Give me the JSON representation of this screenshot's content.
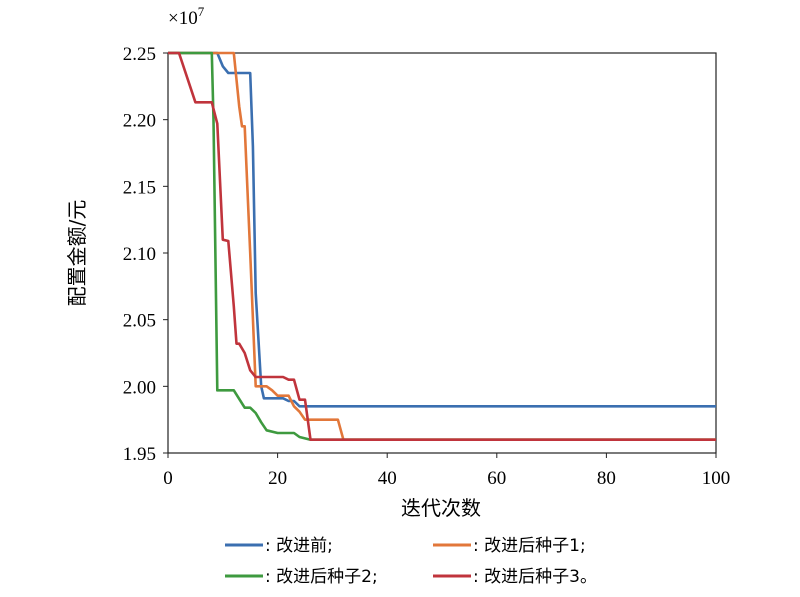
{
  "chart_data": {
    "type": "line",
    "title": "",
    "xlabel": "迭代次数",
    "ylabel": "配置金额/元",
    "y_multiplier_label": "×10",
    "y_multiplier_exp": "7",
    "xlim": [
      0,
      100
    ],
    "ylim": [
      1.95,
      2.25
    ],
    "x_ticks": [
      "0",
      "20",
      "40",
      "60",
      "80",
      "100"
    ],
    "y_ticks": [
      "1.95",
      "2.00",
      "2.05",
      "2.10",
      "2.15",
      "2.20",
      "2.25"
    ],
    "grid": false,
    "legend_position": "bottom",
    "series": [
      {
        "name": ": 改进前;",
        "color": "#3b6fb0",
        "points": [
          [
            0,
            2.25
          ],
          [
            9,
            2.25
          ],
          [
            10,
            2.24
          ],
          [
            11,
            2.235
          ],
          [
            15,
            2.235
          ],
          [
            15.5,
            2.18
          ],
          [
            16,
            2.07
          ],
          [
            17,
            2.0
          ],
          [
            17.5,
            1.991
          ],
          [
            21,
            1.991
          ],
          [
            22,
            1.989
          ],
          [
            23,
            1.989
          ],
          [
            24,
            1.985
          ],
          [
            100,
            1.985
          ]
        ]
      },
      {
        "name": ": 改进后种子1;",
        "color": "#e2773a",
        "points": [
          [
            0,
            2.25
          ],
          [
            12,
            2.25
          ],
          [
            13,
            2.21
          ],
          [
            13.5,
            2.195
          ],
          [
            14,
            2.195
          ],
          [
            15,
            2.1
          ],
          [
            16,
            2.0
          ],
          [
            18,
            2.0
          ],
          [
            19,
            1.997
          ],
          [
            20,
            1.993
          ],
          [
            22,
            1.993
          ],
          [
            23,
            1.985
          ],
          [
            24,
            1.981
          ],
          [
            25,
            1.975
          ],
          [
            31,
            1.975
          ],
          [
            32,
            1.96
          ],
          [
            100,
            1.96
          ]
        ]
      },
      {
        "name": ": 改进后种子2;",
        "color": "#3e9a3f",
        "points": [
          [
            0,
            2.25
          ],
          [
            8,
            2.25
          ],
          [
            8.3,
            2.2
          ],
          [
            9,
            1.997
          ],
          [
            12,
            1.997
          ],
          [
            14,
            1.984
          ],
          [
            15,
            1.984
          ],
          [
            16,
            1.98
          ],
          [
            17,
            1.973
          ],
          [
            18,
            1.967
          ],
          [
            20,
            1.965
          ],
          [
            23,
            1.965
          ],
          [
            24,
            1.962
          ],
          [
            26,
            1.96
          ],
          [
            100,
            1.96
          ]
        ]
      },
      {
        "name": ": 改进后种子3。",
        "color": "#c0343c",
        "points": [
          [
            0,
            2.25
          ],
          [
            2,
            2.25
          ],
          [
            5,
            2.213
          ],
          [
            8,
            2.213
          ],
          [
            9,
            2.197
          ],
          [
            10,
            2.11
          ],
          [
            11,
            2.109
          ],
          [
            12,
            2.06
          ],
          [
            12.5,
            2.032
          ],
          [
            13,
            2.032
          ],
          [
            14,
            2.025
          ],
          [
            15,
            2.012
          ],
          [
            16,
            2.007
          ],
          [
            21,
            2.007
          ],
          [
            22,
            2.005
          ],
          [
            23,
            2.005
          ],
          [
            24,
            1.99
          ],
          [
            25,
            1.99
          ],
          [
            26,
            1.96
          ],
          [
            100,
            1.96
          ]
        ]
      }
    ]
  }
}
